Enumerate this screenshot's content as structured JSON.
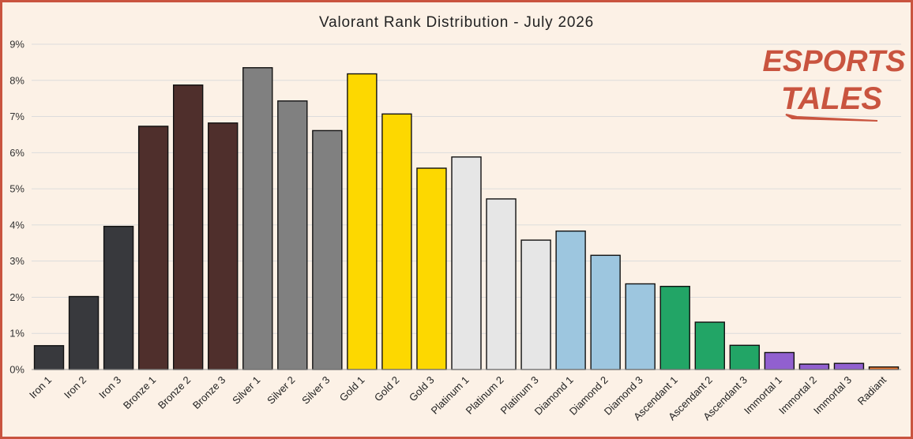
{
  "chart_data": {
    "type": "bar",
    "title": "Valorant Rank Distribution - July 2026",
    "xlabel": "",
    "ylabel": "",
    "ylim": [
      0,
      9
    ],
    "y_ticks": [
      "0%",
      "1%",
      "2%",
      "3%",
      "4%",
      "5%",
      "6%",
      "7%",
      "8%",
      "9%"
    ],
    "grid": "horizontal",
    "categories": [
      "Iron 1",
      "Iron 2",
      "Iron 3",
      "Bronze 1",
      "Bronze 2",
      "Bronze 3",
      "Silver 1",
      "Silver 2",
      "Silver 3",
      "Gold 1",
      "Gold 2",
      "Gold 3",
      "Platinum 1",
      "Platinum 2",
      "Platinum 3",
      "Diamond 1",
      "Diamond 2",
      "Diamond 3",
      "Ascendant 1",
      "Ascendant 2",
      "Ascendant 3",
      "Immortal 1",
      "Immortal 2",
      "Immortal 3",
      "Radiant"
    ],
    "values": [
      0.66,
      2.02,
      3.96,
      6.73,
      7.87,
      6.82,
      8.35,
      7.43,
      6.61,
      8.18,
      7.07,
      5.57,
      5.88,
      4.72,
      3.58,
      3.83,
      3.16,
      2.37,
      2.3,
      1.31,
      0.67,
      0.47,
      0.15,
      0.17,
      0.07
    ],
    "colors": [
      "#38393d",
      "#38393d",
      "#38393d",
      "#4f2f2c",
      "#4f2f2c",
      "#4f2f2c",
      "#808080",
      "#808080",
      "#808080",
      "#fdd800",
      "#fdd800",
      "#fdd800",
      "#e6e6e6",
      "#e6e6e6",
      "#e6e6e6",
      "#9dc6df",
      "#9dc6df",
      "#9dc6df",
      "#22a566",
      "#22a566",
      "#22a566",
      "#9160cf",
      "#9160cf",
      "#9160cf",
      "#e8752e"
    ]
  },
  "logo": {
    "line1": "ESPORTS",
    "line2": "TALES",
    "color": "#c9543f"
  }
}
